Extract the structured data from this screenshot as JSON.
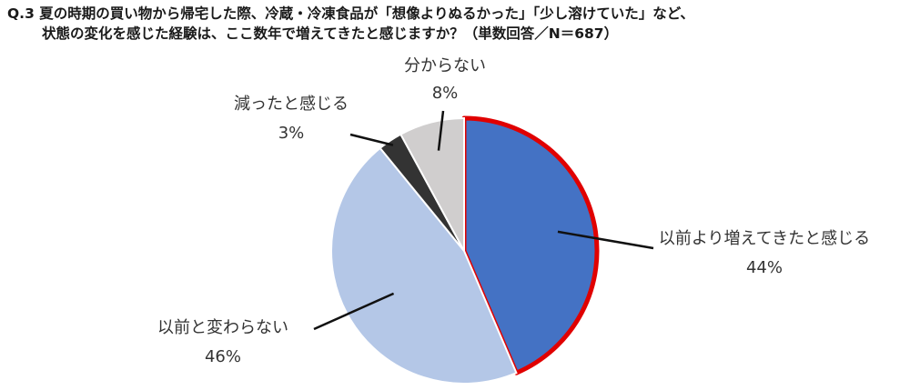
{
  "title": {
    "line1": "Q.3 夏の時期の買い物から帰宅した際、冷蔵・冷凍食品が「想像よりぬるかった」「少し溶けていた」など、",
    "line2": "状態の変化を感じた経験は、ここ数年で増えてきたと感じますか？（単数回答／N＝687）"
  },
  "chart_data": {
    "type": "pie",
    "slices": [
      {
        "label": "以前より増えてきたと感じる",
        "value": 44,
        "value_label": "44%",
        "color": "#4472C4",
        "highlight": "#E00000"
      },
      {
        "label": "以前と変わらない",
        "value": 46,
        "value_label": "46%",
        "color": "#B4C7E7"
      },
      {
        "label": "減ったと感じる",
        "value": 3,
        "value_label": "3%",
        "color": "#333333"
      },
      {
        "label": "分からない",
        "value": 8,
        "value_label": "8%",
        "color": "#D0CECE"
      }
    ],
    "start": "12 o'clock",
    "direction": "clockwise"
  }
}
